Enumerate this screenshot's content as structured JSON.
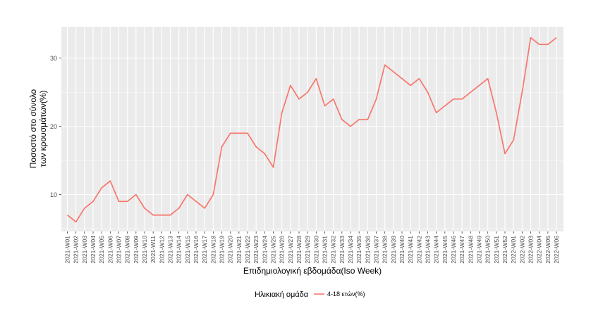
{
  "chart_data": {
    "type": "line",
    "ylabel_lines": [
      "Ποσοστό στο σύνολο",
      "των κρουσμάτων(%)"
    ],
    "xlabel": "Επιδημιολογική εβδομάδα(Iso Week)",
    "legend_title": "Ηλικιακή ομάδα",
    "grid": true,
    "legend_position": "bottom",
    "ylim": [
      4.6,
      34.6
    ],
    "yticks": [
      10,
      20,
      30
    ],
    "categories": [
      "2021-W01",
      "2021-W02",
      "2021-W03",
      "2021-W04",
      "2021-W05",
      "2021-W06",
      "2021-W07",
      "2021-W08",
      "2021-W09",
      "2021-W10",
      "2021-W11",
      "2021-W12",
      "2021-W13",
      "2021-W14",
      "2021-W15",
      "2021-W16",
      "2021-W17",
      "2021-W18",
      "2021-W19",
      "2021-W20",
      "2021-W21",
      "2021-W22",
      "2021-W23",
      "2021-W24",
      "2021-W25",
      "2021-W26",
      "2021-W27",
      "2021-W28",
      "2021-W29",
      "2021-W30",
      "2021-W31",
      "2021-W32",
      "2021-W33",
      "2021-W34",
      "2021-W35",
      "2021-W36",
      "2021-W37",
      "2021-W38",
      "2021-W39",
      "2021-W40",
      "2021-W41",
      "2021-W42",
      "2021-W43",
      "2021-W44",
      "2021-W45",
      "2021-W46",
      "2021-W47",
      "2021-W48",
      "2021-W49",
      "2021-W50",
      "2021-W51",
      "2021-W52",
      "2022-W01",
      "2022-W02",
      "2022-W03",
      "2022-W04",
      "2022-W05",
      "2022-W06"
    ],
    "series": [
      {
        "name": "4-18 ετών(%)",
        "color": "#F8766D",
        "values": [
          7,
          6,
          8,
          9,
          11,
          12,
          9,
          9,
          10,
          8,
          7,
          7,
          7,
          8,
          10,
          9,
          8,
          10,
          17,
          19,
          19,
          19,
          17,
          16,
          14,
          22,
          26,
          24,
          25,
          27,
          23,
          24,
          21,
          20,
          21,
          21,
          24,
          29,
          28,
          27,
          26,
          27,
          25,
          22,
          23,
          24,
          24,
          25,
          26,
          27,
          22,
          16,
          18,
          25,
          33,
          32,
          32,
          33
        ]
      }
    ]
  }
}
